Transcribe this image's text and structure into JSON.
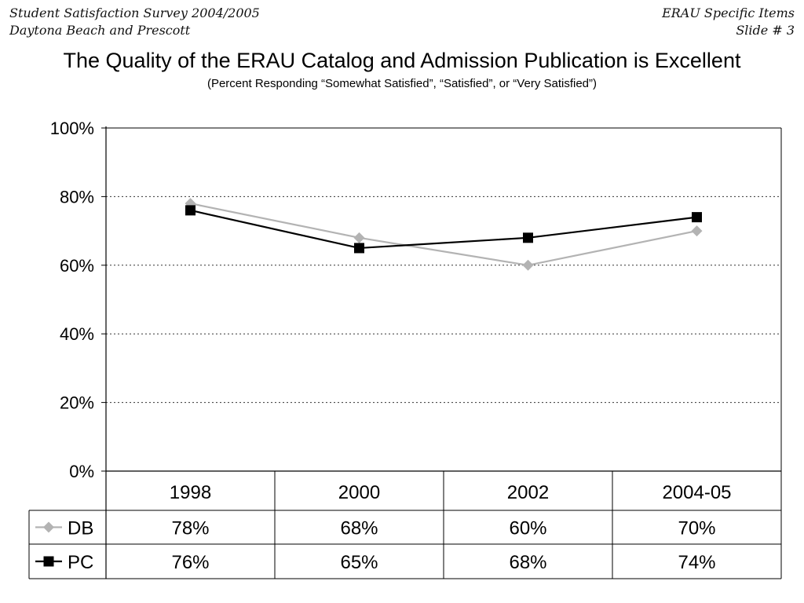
{
  "header": {
    "left_line1": "Student Satisfaction Survey 2004/2005",
    "left_line2": "Daytona Beach and Prescott",
    "right_line1": "ERAU Specific Items",
    "right_line2": "Slide # 3"
  },
  "chart_data": {
    "type": "line",
    "title": "The Quality of the ERAU Catalog and Admission Publication is Excellent",
    "subtitle": "(Percent Responding “Somewhat Satisfied”, “Satisfied”, or “Very Satisfied”)",
    "categories": [
      "1998",
      "2000",
      "2002",
      "2004-05"
    ],
    "series": [
      {
        "name": "DB",
        "values": [
          78,
          68,
          60,
          70
        ],
        "labels": [
          "78%",
          "68%",
          "60%",
          "70%"
        ],
        "color": "#b3b3b3",
        "marker": "diamond"
      },
      {
        "name": "PC",
        "values": [
          76,
          65,
          68,
          74
        ],
        "labels": [
          "76%",
          "65%",
          "68%",
          "74%"
        ],
        "color": "#000000",
        "marker": "square"
      }
    ],
    "ylim": [
      0,
      100
    ],
    "yticks": [
      0,
      20,
      40,
      60,
      80,
      100
    ],
    "ytick_labels": [
      "0%",
      "20%",
      "40%",
      "60%",
      "80%",
      "100%"
    ],
    "grid": "horizontal dotted",
    "legend": "data-table"
  }
}
